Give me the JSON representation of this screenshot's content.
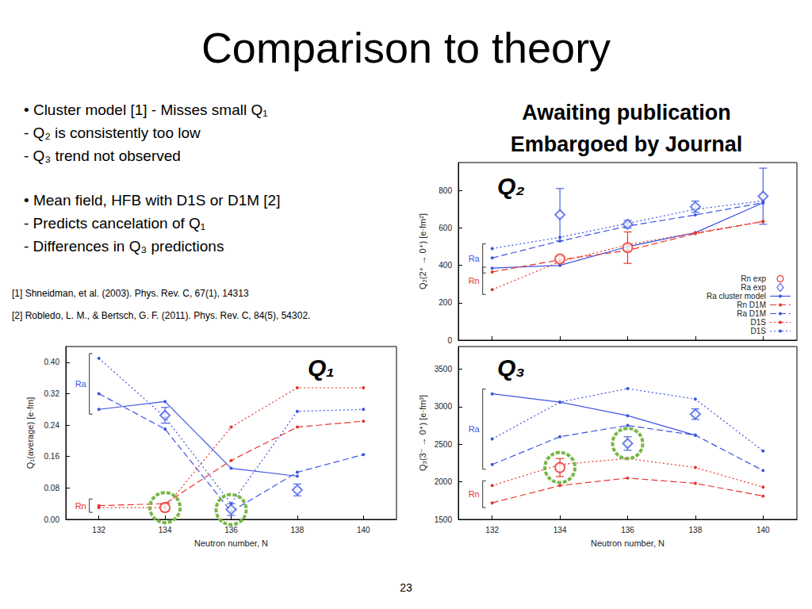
{
  "title": "Comparison to theory",
  "bullets": [
    [
      "• Cluster model [1] - Misses small Q₁",
      "- Q₂ is consistently too low",
      "- Q₃ trend not observed"
    ],
    [
      "• Mean field, HFB with D1S or D1M [2]",
      "- Predicts cancelation of Q₁",
      "- Differences in Q₃ predictions"
    ]
  ],
  "notice": [
    "Awaiting publication",
    "Embargoed by Journal"
  ],
  "references": [
    "[1] Shneidman, et al. (2003). Phys. Rev. C, 67(1), 14313",
    "[2] Robledo, L. M., & Bertsch, G. F. (2011). Phys. Rev. C, 84(5), 54302."
  ],
  "page_number": "23",
  "chart_data": [
    {
      "type": "line",
      "title": "Q₂",
      "y_label": "Q₂(2⁺ → 0⁺) [e·fm²]",
      "x": [
        132,
        134,
        136,
        138,
        140
      ],
      "xlim": [
        131,
        141
      ],
      "xticks": [
        132,
        134,
        136,
        138,
        140
      ],
      "ylim": [
        0,
        950
      ],
      "yticks": [
        0,
        200,
        400,
        600,
        800
      ],
      "tick_labels": "y",
      "grid": false,
      "legend": "lower right",
      "series": [
        {
          "name": "Rn exp",
          "type": "scatter",
          "marker": "open_circle",
          "color": "#e8352b",
          "values": [
            null,
            434,
            495,
            null,
            null
          ],
          "errors": [
            null,
            15,
            84,
            null,
            null
          ]
        },
        {
          "name": "Ra exp",
          "type": "scatter",
          "marker": "open_diamond",
          "color": "#4a62e6",
          "values": [
            null,
            671,
            620,
            714,
            770
          ],
          "errors": [
            null,
            140,
            20,
            30,
            150
          ]
        },
        {
          "name": "Ra cluster model",
          "marker": "dot",
          "line_style": "solid",
          "color": "#3d55e0",
          "values": [
            385,
            400,
            500,
            575,
            735
          ]
        },
        {
          "name": "Rn D1M",
          "marker": "dot",
          "line_style": "dashed",
          "color": "#e8352b",
          "values": [
            365,
            430,
            480,
            570,
            635
          ]
        },
        {
          "name": "Ra D1M",
          "marker": "dot",
          "line_style": "dashed",
          "color": "#3d55e0",
          "values": [
            440,
            530,
            610,
            670,
            735
          ]
        },
        {
          "name": "D1S",
          "marker": "dot",
          "line_style": "dotted",
          "color": "#e8352b",
          "values": [
            270,
            420,
            510,
            575,
            635
          ]
        },
        {
          "name": "D1S",
          "marker": "dot",
          "line_style": "dotted",
          "color": "#3d55e0",
          "values": [
            490,
            550,
            625,
            700,
            745
          ]
        }
      ],
      "annotations": [
        {
          "type": "bracket",
          "text": "Ra",
          "color": "#3d55e0",
          "y": [
            385,
            490
          ]
        },
        {
          "type": "bracket",
          "text": "Rn",
          "color": "#e8352b",
          "y": [
            270,
            365
          ]
        }
      ]
    },
    {
      "type": "line",
      "title": "Q₁",
      "x_label": "Neutron number, N",
      "y_label": "Q₁(average) [e·fm]",
      "x": [
        132,
        134,
        136,
        138,
        140
      ],
      "xlim": [
        131,
        141
      ],
      "xticks": [
        132,
        134,
        136,
        138,
        140
      ],
      "ylim": [
        0,
        0.44
      ],
      "yticks": [
        {
          "value": 0,
          "label": "0.00"
        },
        0.08,
        0.16,
        0.24,
        0.32,
        {
          "value": 0.4,
          "label": "0.40"
        }
      ],
      "grid": false,
      "series": [
        {
          "type": "scatter",
          "marker": "open_circle",
          "color": "#e8352b",
          "values": [
            null,
            0.03,
            null,
            null,
            null
          ],
          "errors": [
            null,
            0.01,
            null,
            null,
            null
          ]
        },
        {
          "type": "scatter",
          "marker": "open_diamond",
          "color": "#4a62e6",
          "values": [
            null,
            0.265,
            0.025,
            0.075,
            null
          ],
          "errors": [
            null,
            0.02,
            0.015,
            0.015,
            null
          ]
        },
        {
          "marker": "dot",
          "line_style": "solid",
          "color": "#3d55e0",
          "values": [
            0.28,
            0.3,
            0.13,
            0.11,
            null
          ]
        },
        {
          "marker": "dot",
          "line_style": "dashed",
          "color": "#e8352b",
          "values": [
            0.035,
            0.04,
            0.15,
            0.235,
            0.25
          ]
        },
        {
          "marker": "dot",
          "line_style": "dashed",
          "color": "#3d55e0",
          "values": [
            0.32,
            0.23,
            0.02,
            0.12,
            0.165
          ]
        },
        {
          "marker": "dot",
          "line_style": "dotted",
          "color": "#e8352b",
          "values": [
            0.03,
            0.03,
            0.235,
            0.335,
            0.335
          ]
        },
        {
          "marker": "dot",
          "line_style": "dotted",
          "color": "#3d55e0",
          "values": [
            0.41,
            0.26,
            0.04,
            0.275,
            0.28
          ]
        }
      ],
      "annotations": [
        {
          "type": "bracket",
          "text": "Ra",
          "color": "#3d55e0",
          "y": [
            0.28,
            0.41
          ]
        },
        {
          "type": "bracket",
          "text": "Rn",
          "color": "#e8352b",
          "y": [
            0.03,
            0.04
          ]
        },
        {
          "type": "circle",
          "color": "#7ab648",
          "x": 134,
          "y": 0.03
        },
        {
          "type": "circle",
          "color": "#7ab648",
          "x": 136,
          "y": 0.025
        }
      ]
    },
    {
      "type": "line",
      "title": "Q₃",
      "x_label": "Neutron number, N",
      "y_label": "Q₃(3⁻ → 0⁺) [e·fm³]",
      "x": [
        132,
        134,
        136,
        138,
        140
      ],
      "xlim": [
        131,
        141
      ],
      "xticks": [
        132,
        134,
        136,
        138,
        140
      ],
      "ylim": [
        1500,
        3800
      ],
      "yticks": [
        1500,
        2000,
        2500,
        3000,
        3500
      ],
      "grid": false,
      "series": [
        {
          "type": "scatter",
          "marker": "open_circle",
          "color": "#e8352b",
          "values": [
            null,
            2190,
            null,
            null,
            null
          ],
          "errors": [
            null,
            120,
            null,
            null,
            null
          ]
        },
        {
          "type": "scatter",
          "marker": "open_diamond",
          "color": "#4a62e6",
          "values": [
            null,
            null,
            2510,
            2900,
            null
          ],
          "errors": [
            null,
            null,
            90,
            70,
            null
          ]
        },
        {
          "marker": "dot",
          "line_style": "solid",
          "color": "#3d55e0",
          "values": [
            3170,
            3060,
            2880,
            2620,
            null
          ]
        },
        {
          "marker": "dot",
          "line_style": "dashed",
          "color": "#e8352b",
          "values": [
            1720,
            1950,
            2050,
            1980,
            1810
          ]
        },
        {
          "marker": "dot",
          "line_style": "dashed",
          "color": "#3d55e0",
          "values": [
            2230,
            2600,
            2750,
            2620,
            2150
          ]
        },
        {
          "marker": "dot",
          "line_style": "dotted",
          "color": "#e8352b",
          "values": [
            1950,
            2230,
            2310,
            2190,
            1930
          ]
        },
        {
          "marker": "dot",
          "line_style": "dotted",
          "color": "#3d55e0",
          "values": [
            2570,
            3060,
            3240,
            3100,
            2410
          ]
        }
      ],
      "annotations": [
        {
          "type": "bracket",
          "text": "Ra",
          "color": "#3d55e0",
          "y": [
            2230,
            3170
          ]
        },
        {
          "type": "bracket",
          "text": "Rn",
          "color": "#e8352b",
          "y": [
            1720,
            1950
          ]
        },
        {
          "type": "circle",
          "color": "#7ab648",
          "x": 134,
          "y": 2190
        },
        {
          "type": "circle",
          "color": "#7ab648",
          "x": 136,
          "y": 2510
        }
      ]
    }
  ]
}
